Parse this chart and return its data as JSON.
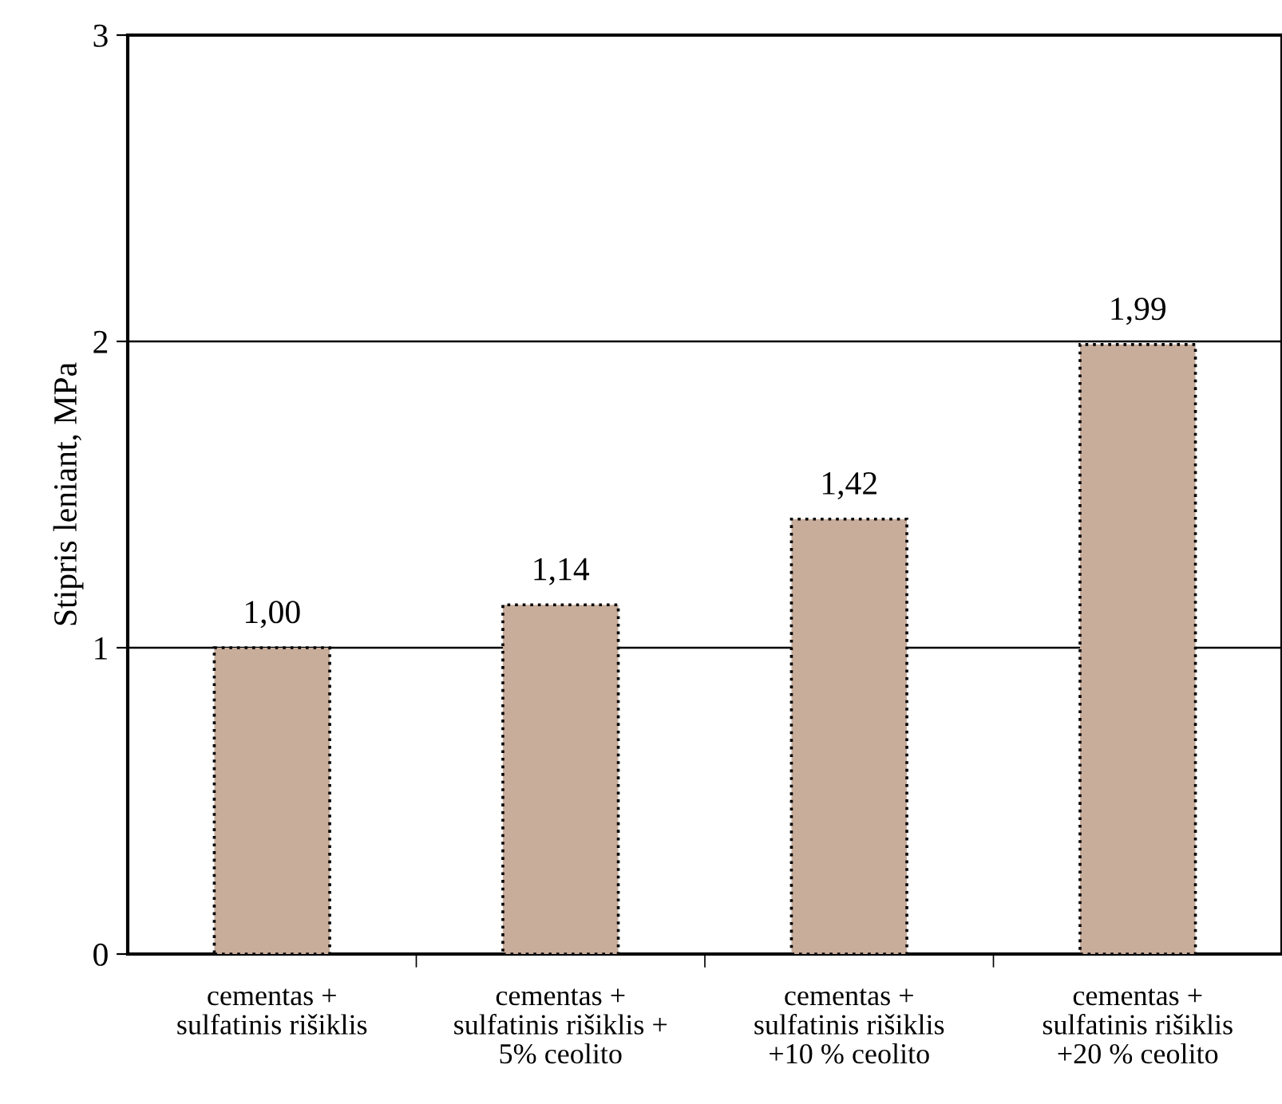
{
  "chart_data": {
    "type": "bar",
    "ylabel": "Stipris leniant, MPa",
    "categories": [
      "cementas +\nsulfatinis rišiklis",
      "cementas +\nsulfatinis rišiklis +\n5% ceolito",
      "cementas +\nsulfatinis rišiklis\n+10 % ceolito",
      "cementas +\nsulfatinis rišiklis\n+20 % ceolito"
    ],
    "values": [
      1.0,
      1.14,
      1.42,
      1.99
    ],
    "value_labels": [
      "1,00",
      "1,14",
      "1,42",
      "1,99"
    ],
    "color": "#c8ad9b",
    "ylim": [
      0,
      3
    ],
    "yticks": [
      0,
      1,
      2,
      3
    ],
    "grid": "y",
    "legend": false
  }
}
